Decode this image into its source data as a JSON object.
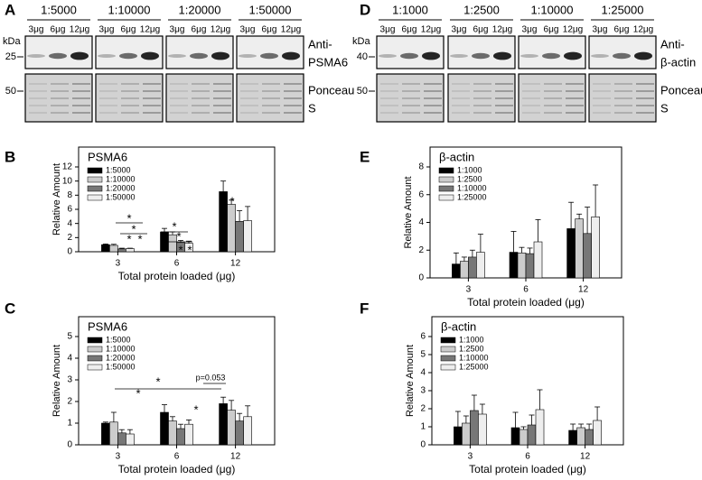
{
  "blots": [
    {
      "panel": "A",
      "dilutions": [
        "1:5000",
        "1:10000",
        "1:20000",
        "1:50000"
      ],
      "lanes": [
        "3μg",
        "6μg",
        "12μg"
      ],
      "kda": "kDa",
      "markers": [
        25,
        50
      ],
      "labels": [
        [
          "Anti-",
          "PSMA6"
        ],
        [
          "Ponceau",
          "S"
        ]
      ]
    },
    {
      "panel": "D",
      "dilutions": [
        "1:1000",
        "1:2500",
        "1:10000",
        "1:25000"
      ],
      "lanes": [
        "3μg",
        "6μg",
        "12μg"
      ],
      "kda": "kDa",
      "markers": [
        40,
        50
      ],
      "labels": [
        [
          "Anti-",
          "β-actin"
        ],
        [
          "Ponceau",
          "S"
        ]
      ]
    }
  ],
  "chart_data": [
    {
      "type": "bar",
      "panel": "B",
      "title": "PSMA6",
      "x_label": "Total protein loaded (μg)",
      "y_label": "Relative Amount",
      "categories": [
        "3",
        "6",
        "12"
      ],
      "ylim": [
        0,
        12
      ],
      "yticks": [
        0,
        2,
        4,
        6,
        8,
        10,
        12
      ],
      "series": [
        {
          "name": "1:5000",
          "color": "#000000",
          "values": [
            1.0,
            2.8,
            8.5
          ],
          "errors": [
            0.1,
            0.5,
            1.5
          ]
        },
        {
          "name": "1:10000",
          "color": "#cccccc",
          "values": [
            0.9,
            2.4,
            6.7
          ],
          "errors": [
            0.15,
            0.4,
            0.6
          ]
        },
        {
          "name": "1:20000",
          "color": "#777777",
          "values": [
            0.4,
            1.3,
            4.3
          ],
          "errors": [
            0.1,
            0.3,
            1.5
          ]
        },
        {
          "name": "1:50000",
          "color": "#eeeeee",
          "values": [
            0.45,
            1.2,
            4.4
          ],
          "errors": [
            0.05,
            0.3,
            2.0
          ]
        }
      ],
      "annotations": [
        "*",
        "*",
        "*",
        "*",
        "*",
        "*",
        "*",
        "*",
        "*",
        "*"
      ]
    },
    {
      "type": "bar",
      "panel": "C",
      "title": "PSMA6",
      "x_label": "Total protein loaded (μg)",
      "y_label": "Relative Amount",
      "categories": [
        "3",
        "6",
        "12"
      ],
      "ylim": [
        0,
        5
      ],
      "yticks": [
        0,
        1,
        2,
        3,
        4,
        5
      ],
      "series": [
        {
          "name": "1:5000",
          "color": "#000000",
          "values": [
            1.0,
            1.5,
            1.9
          ],
          "errors": [
            0.05,
            0.35,
            0.3
          ]
        },
        {
          "name": "1:10000",
          "color": "#cccccc",
          "values": [
            1.05,
            1.1,
            1.6
          ],
          "errors": [
            0.45,
            0.2,
            0.45
          ]
        },
        {
          "name": "1:20000",
          "color": "#777777",
          "values": [
            0.55,
            0.75,
            1.1
          ],
          "errors": [
            0.15,
            0.2,
            0.35
          ]
        },
        {
          "name": "1:50000",
          "color": "#eeeeee",
          "values": [
            0.5,
            0.95,
            1.3
          ],
          "errors": [
            0.2,
            0.2,
            0.5
          ]
        }
      ],
      "annotations": [
        "*",
        "p=0.053",
        "*",
        "*"
      ]
    },
    {
      "type": "bar",
      "panel": "E",
      "title": "β-actin",
      "x_label": "Total protein loaded (μg)",
      "y_label": "Relative Amount",
      "categories": [
        "3",
        "6",
        "12"
      ],
      "ylim": [
        0,
        8
      ],
      "yticks": [
        0,
        2,
        4,
        6,
        8
      ],
      "series": [
        {
          "name": "1:1000",
          "color": "#000000",
          "values": [
            1.0,
            1.85,
            3.55
          ],
          "errors": [
            0.8,
            1.5,
            1.9
          ]
        },
        {
          "name": "1:2500",
          "color": "#cccccc",
          "values": [
            1.2,
            1.8,
            4.25
          ],
          "errors": [
            0.3,
            0.4,
            0.35
          ]
        },
        {
          "name": "1:10000",
          "color": "#777777",
          "values": [
            1.5,
            1.75,
            3.2
          ],
          "errors": [
            0.5,
            0.4,
            1.9
          ]
        },
        {
          "name": "1:25000",
          "color": "#eeeeee",
          "values": [
            1.85,
            2.6,
            4.4
          ],
          "errors": [
            1.3,
            1.6,
            2.3
          ]
        }
      ],
      "annotations": []
    },
    {
      "type": "bar",
      "panel": "F",
      "title": "β-actin",
      "x_label": "Total protein loaded (μg)",
      "y_label": "Relative Amount",
      "categories": [
        "3",
        "6",
        "12"
      ],
      "ylim": [
        0,
        6
      ],
      "yticks": [
        0,
        1,
        2,
        3,
        4,
        5,
        6
      ],
      "series": [
        {
          "name": "1:1000",
          "color": "#000000",
          "values": [
            1.0,
            0.95,
            0.8
          ],
          "errors": [
            0.85,
            0.85,
            0.35
          ]
        },
        {
          "name": "1:2500",
          "color": "#cccccc",
          "values": [
            1.2,
            0.85,
            0.95
          ],
          "errors": [
            0.4,
            0.15,
            0.2
          ]
        },
        {
          "name": "1:10000",
          "color": "#777777",
          "values": [
            1.9,
            1.1,
            0.85
          ],
          "errors": [
            0.85,
            0.55,
            0.3
          ]
        },
        {
          "name": "1:25000",
          "color": "#eeeeee",
          "values": [
            1.7,
            1.95,
            1.35
          ],
          "errors": [
            0.55,
            1.1,
            0.75
          ]
        }
      ],
      "annotations": []
    }
  ]
}
